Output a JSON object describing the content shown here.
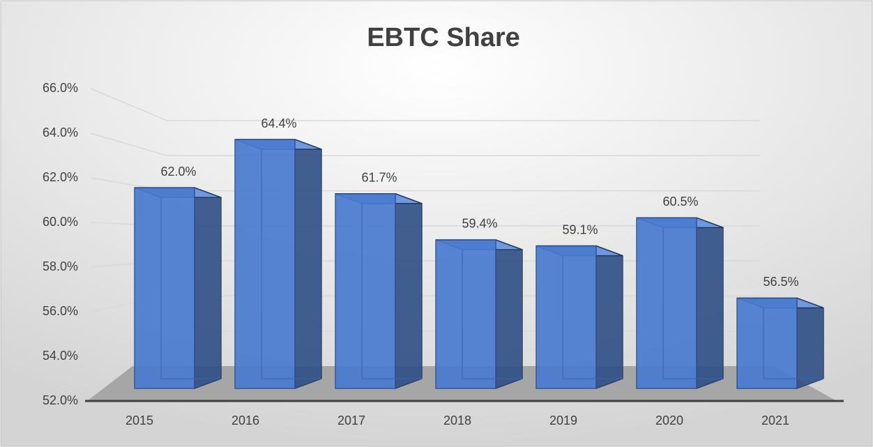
{
  "chart_data": {
    "type": "bar3d",
    "title": "EBTC Share",
    "categories": [
      "2015",
      "2016",
      "2017",
      "2018",
      "2019",
      "2020",
      "2021"
    ],
    "values": [
      62.0,
      64.4,
      61.7,
      59.4,
      59.1,
      60.5,
      56.5
    ],
    "value_labels": [
      "62.0%",
      "64.4%",
      "61.7%",
      "59.4%",
      "59.1%",
      "60.5%",
      "56.5%"
    ],
    "color": "#4a7bd0",
    "ylim": [
      52,
      66
    ],
    "yticks": [
      {
        "value": 52,
        "label": "52.0%"
      },
      {
        "value": 54,
        "label": "54.0%"
      },
      {
        "value": 56,
        "label": "56.0%"
      },
      {
        "value": 58,
        "label": "58.0%"
      },
      {
        "value": 60,
        "label": "60.0%"
      },
      {
        "value": 62,
        "label": "62.0%"
      },
      {
        "value": 64,
        "label": "64.0%"
      },
      {
        "value": 66,
        "label": "66.0%"
      }
    ],
    "grid": true
  }
}
